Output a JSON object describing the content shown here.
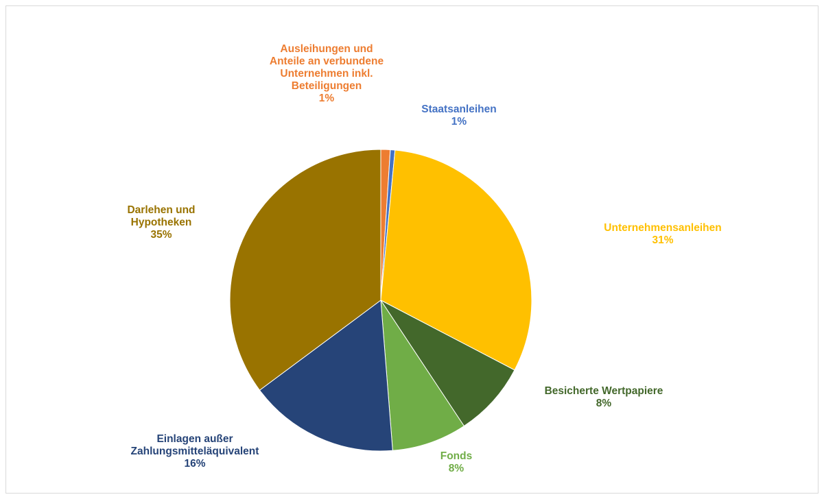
{
  "chart_data": {
    "type": "pie",
    "title": "",
    "legend": "none",
    "series": [
      {
        "values": [
          {
            "label": "Ausleihungen und Anteile an verbundene Unternehmen inkl. Beteiligungen",
            "label_lines": [
              "Ausleihungen und",
              "Anteile an verbundene",
              "Unternehmen inkl.",
              "Beteiligungen"
            ],
            "value": 1,
            "percent_label": "1%",
            "color": "#ED7D31"
          },
          {
            "label": "Staatsanleihen",
            "label_lines": [
              "Staatsanleihen"
            ],
            "value": 0.5,
            "percent_label": "1%",
            "color": "#4472C4"
          },
          {
            "label": "Unternehmensanleihen",
            "label_lines": [
              "Unternehmensanleihen"
            ],
            "value": 31,
            "percent_label": "31%",
            "color": "#FFC000"
          },
          {
            "label": "Besicherte Wertpapiere",
            "label_lines": [
              "Besicherte Wertpapiere"
            ],
            "value": 8,
            "percent_label": "8%",
            "color": "#43682B"
          },
          {
            "label": "Fonds",
            "label_lines": [
              "Fonds"
            ],
            "value": 8,
            "percent_label": "8%",
            "color": "#70AD47"
          },
          {
            "label": "Einlagen außer Zahlungsmitteläquivalent",
            "label_lines": [
              "Einlagen außer",
              "Zahlungsmitteläquivalent"
            ],
            "value": 16,
            "percent_label": "16%",
            "color": "#264478"
          },
          {
            "label": "Darlehen und Hypotheken",
            "label_lines": [
              "Darlehen und",
              "Hypotheken"
            ],
            "value": 35,
            "percent_label": "35%",
            "color": "#997300"
          }
        ]
      }
    ]
  }
}
